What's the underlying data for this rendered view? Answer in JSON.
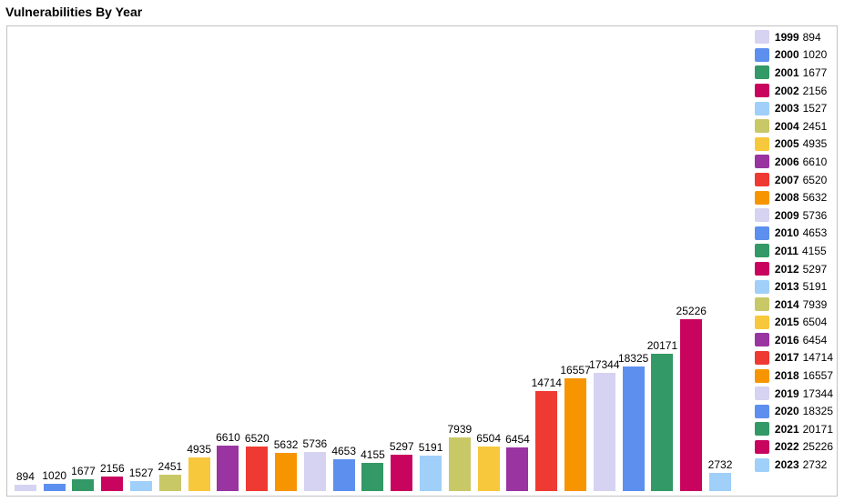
{
  "title": "Vulnerabilities By Year",
  "chart_data": {
    "type": "bar",
    "title": "Vulnerabilities By Year",
    "categories": [
      "1999",
      "2000",
      "2001",
      "2002",
      "2003",
      "2004",
      "2005",
      "2006",
      "2007",
      "2008",
      "2009",
      "2010",
      "2011",
      "2012",
      "2013",
      "2014",
      "2015",
      "2016",
      "2017",
      "2018",
      "2019",
      "2020",
      "2021",
      "2022",
      "2023"
    ],
    "values": [
      894,
      1020,
      1677,
      2156,
      1527,
      2451,
      4935,
      6610,
      6520,
      5632,
      5736,
      4653,
      4155,
      5297,
      5191,
      7939,
      6504,
      6454,
      14714,
      16557,
      17344,
      18325,
      20171,
      25226,
      2732
    ],
    "xlabel": "",
    "ylabel": "",
    "ylim": [
      0,
      25226
    ],
    "grid": false,
    "bar_value_labels": true,
    "legend_position": "right-inside",
    "legend_entries": [
      {
        "label": "1999",
        "value": "894"
      },
      {
        "label": "2000",
        "value": "1020"
      },
      {
        "label": "2001",
        "value": "1677"
      },
      {
        "label": "2002",
        "value": "2156"
      },
      {
        "label": "2003",
        "value": "1527"
      },
      {
        "label": "2004",
        "value": "2451"
      },
      {
        "label": "2005",
        "value": "4935"
      },
      {
        "label": "2006",
        "value": "6610"
      },
      {
        "label": "2007",
        "value": "6520"
      },
      {
        "label": "2008",
        "value": "5632"
      },
      {
        "label": "2009",
        "value": "5736"
      },
      {
        "label": "2010",
        "value": "4653"
      },
      {
        "label": "2011",
        "value": "4155"
      },
      {
        "label": "2012",
        "value": "5297"
      },
      {
        "label": "2013",
        "value": "5191"
      },
      {
        "label": "2014",
        "value": "7939"
      },
      {
        "label": "2015",
        "value": "6504"
      },
      {
        "label": "2016",
        "value": "6454"
      },
      {
        "label": "2017",
        "value": "14714"
      },
      {
        "label": "2018",
        "value": "16557"
      },
      {
        "label": "2019",
        "value": "17344"
      },
      {
        "label": "2020",
        "value": "18325"
      },
      {
        "label": "2021",
        "value": "20171"
      },
      {
        "label": "2022",
        "value": "25226"
      },
      {
        "label": "2023",
        "value": "2732"
      }
    ],
    "palette": [
      "#D6D2F2",
      "#5D8FEF",
      "#339966",
      "#C8045E",
      "#A0CFF9",
      "#C9C867",
      "#F7C83B",
      "#9934A1",
      "#EF3A33",
      "#F79500"
    ]
  },
  "colors": {
    "chart_border": "#C2C2C2",
    "background": "#FFFFFF",
    "text": "#000000"
  }
}
